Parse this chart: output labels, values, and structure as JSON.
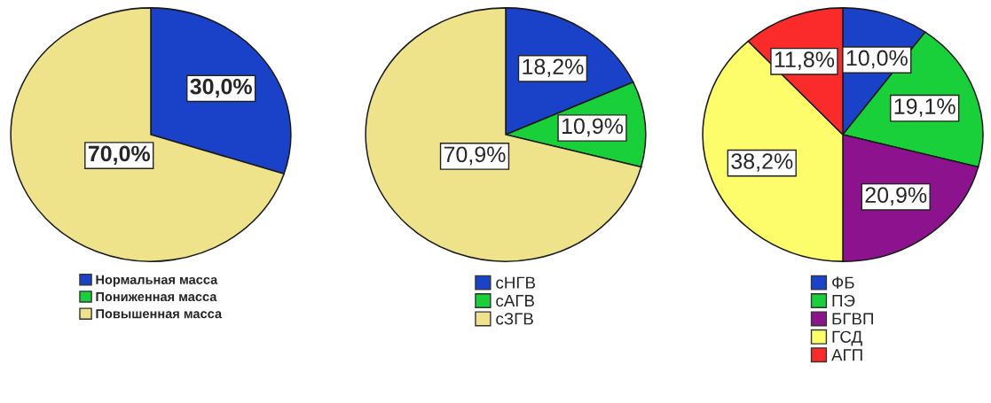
{
  "chart_data": [
    {
      "type": "pie",
      "categories": [
        "Нормальная масса",
        "Пониженная масса",
        "Повышенная масса"
      ],
      "values": [
        30.0,
        0,
        70.0
      ],
      "colors": [
        "#1a42c8",
        "#19cf3a",
        "#eee38b"
      ],
      "value_labels": [
        "30,0%",
        null,
        "70,0%"
      ],
      "legend": "bottom"
    },
    {
      "type": "pie",
      "categories": [
        "сНГВ",
        "сАГВ",
        "сЗГВ"
      ],
      "values": [
        18.2,
        10.9,
        70.9
      ],
      "colors": [
        "#1a42c8",
        "#19cf3a",
        "#eee38b"
      ],
      "value_labels": [
        "18,2%",
        "10,9%",
        "70,9%"
      ],
      "legend": "bottom"
    },
    {
      "type": "pie",
      "categories": [
        "ФБ",
        "ПЭ",
        "БГВП",
        "ГСД",
        "АГП"
      ],
      "values": [
        10.0,
        19.1,
        20.9,
        38.2,
        11.8
      ],
      "colors": [
        "#1a42c8",
        "#19cf3a",
        "#8c128e",
        "#fdfd6c",
        "#fb2b2b"
      ],
      "value_labels": [
        "10,0%",
        "19,1%",
        "20,9%",
        "38,2%",
        "11,8%"
      ],
      "legend": "bottom"
    }
  ]
}
